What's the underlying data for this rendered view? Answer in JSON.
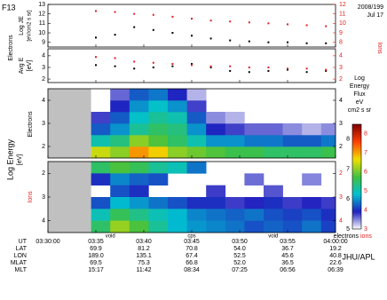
{
  "satellite": "F13",
  "date": "2008/199",
  "day": "Jul 17",
  "credit": "JHU/APL",
  "x_axis": {
    "xlim": [
      30,
      60
    ],
    "xticks": [
      {
        "value": 30,
        "label": "03:30:00"
      },
      {
        "value": 35,
        "label": "03:35"
      },
      {
        "value": 40,
        "label": "03:40"
      },
      {
        "value": 45,
        "label": "03:45"
      },
      {
        "value": 50,
        "label": "03:50"
      },
      {
        "value": 55,
        "label": "03:55"
      },
      {
        "value": 60,
        "label": "04:00:00"
      }
    ],
    "label": "UT"
  },
  "regions": [
    {
      "x": 36.5,
      "label": "void"
    },
    {
      "x": 45,
      "label": "cps"
    },
    {
      "x": 53.5,
      "label": "void"
    }
  ],
  "ephemeris": [
    {
      "label": "LAT",
      "values": [
        "69.9",
        "81.2",
        "70.8",
        "54.0",
        "36.7",
        "19.2"
      ]
    },
    {
      "label": "LON",
      "values": [
        "189.0",
        "135.1",
        "67.4",
        "52.5",
        "45.6",
        "40.8"
      ]
    },
    {
      "label": "MLAT",
      "values": [
        "69.5",
        "75.3",
        "66.8",
        "52.0",
        "36.5",
        "22.6"
      ]
    },
    {
      "label": "MLT",
      "values": [
        "15:17",
        "11:42",
        "08:34",
        "07:25",
        "06:56",
        "06:39"
      ]
    }
  ],
  "colorbar": {
    "title": [
      "Log",
      "Energy",
      "Flux",
      "eV",
      "cm2 s sr"
    ],
    "colormap": [
      "#ffffff",
      "#2020c0",
      "#00c0d0",
      "#40c040",
      "#f0e000",
      "#ff4000",
      "#800000"
    ],
    "electrons": {
      "name": "electrons",
      "color": "#000000",
      "zlim": [
        5,
        8.5
      ],
      "ticks": [
        5,
        6,
        7,
        8
      ]
    },
    "ions": {
      "name": "ions",
      "color": "#e02020",
      "zlim": [
        3,
        8.5
      ],
      "ticks": [
        3,
        4,
        5,
        6,
        7,
        8
      ]
    }
  },
  "chart_data": [
    {
      "type": "scatter",
      "ylabel": "Log JE",
      "yunits": "[eV/cm2 s sr]",
      "ylim": [
        8.5,
        13
      ],
      "yticks": [
        9,
        10,
        11,
        12,
        13
      ],
      "y2lim": [
        7.5,
        12
      ],
      "y2ticks": [
        8,
        9,
        10,
        11,
        12
      ],
      "x": [
        35,
        37,
        39,
        41,
        43,
        45,
        47,
        49,
        51,
        53,
        55,
        57,
        59
      ],
      "series": [
        {
          "name": "Electrons",
          "color": "#000000",
          "values": [
            9.5,
            9.8,
            10.6,
            10.3,
            10.0,
            9.7,
            9.4,
            9.2,
            9.1,
            9.0,
            9.0,
            8.9,
            8.9
          ]
        },
        {
          "name": "Ions",
          "color": "#e02020",
          "axis": "y2",
          "values": [
            11.3,
            11.2,
            11.0,
            10.9,
            10.7,
            10.5,
            10.3,
            10.2,
            10.1,
            10.0,
            9.9,
            9.8,
            9.7
          ]
        }
      ]
    },
    {
      "type": "scatter",
      "ylabel": "Avg E",
      "yunits": "[eV]",
      "ylim": [
        1.7,
        4.6
      ],
      "yticks": [
        2,
        3,
        4
      ],
      "y2lim": [
        1.7,
        4.6
      ],
      "y2ticks": [
        2,
        3,
        4
      ],
      "x": [
        35,
        37,
        39,
        41,
        43,
        45,
        47,
        49,
        51,
        53,
        55,
        57,
        59
      ],
      "series": [
        {
          "color": "#000000",
          "values": [
            3.2,
            3.1,
            2.9,
            3.0,
            3.1,
            3.3,
            3.0,
            2.7,
            2.6,
            2.7,
            2.8,
            2.6,
            2.7
          ]
        },
        {
          "color": "#e02020",
          "axis": "y2",
          "values": [
            3.9,
            3.8,
            3.5,
            3.4,
            3.3,
            3.2,
            3.1,
            3.1,
            3.0,
            3.0,
            2.9,
            2.9,
            2.8
          ]
        }
      ]
    },
    {
      "type": "heatmap",
      "label": "Electrons",
      "color": "#000000",
      "ylabel": "Log Energy",
      "yunits": "[eV]",
      "zscale": "electrons",
      "ylim": [
        1.5,
        4.5
      ],
      "yticks": [
        2,
        3,
        4
      ],
      "x_bins": [
        34.5,
        36.5,
        38.5,
        40.5,
        42.5,
        44.5,
        46.5,
        48.5,
        50.5,
        52.5,
        54.5,
        56.5,
        58.5,
        60
      ],
      "energy_bins": [
        1.5,
        2,
        2.5,
        3,
        3.5,
        4,
        4.5
      ],
      "z": [
        [
          7.2,
          6.3,
          5.8,
          5.5,
          null,
          null
        ],
        [
          7.0,
          6.5,
          6.0,
          5.8,
          5.6,
          5.4
        ],
        [
          7.6,
          7.0,
          6.4,
          6.2,
          6.0,
          5.8
        ],
        [
          7.4,
          6.8,
          6.6,
          6.4,
          6.2,
          5.9
        ],
        [
          7.0,
          6.6,
          6.5,
          6.3,
          6.0,
          5.6
        ],
        [
          6.9,
          6.3,
          6.0,
          5.8,
          5.5,
          5.2
        ],
        [
          6.8,
          6.0,
          5.6,
          5.3,
          null,
          null
        ],
        [
          6.7,
          6.0,
          5.5,
          5.2,
          null,
          null
        ],
        [
          6.7,
          5.9,
          5.4,
          null,
          null,
          null
        ],
        [
          6.6,
          5.9,
          5.4,
          null,
          null,
          null
        ],
        [
          6.6,
          5.8,
          5.3,
          null,
          null,
          null
        ],
        [
          6.6,
          5.8,
          5.2,
          null,
          null,
          null
        ],
        [
          6.7,
          5.9,
          5.3,
          null,
          null,
          null
        ]
      ]
    },
    {
      "type": "heatmap",
      "label": "Ions",
      "color": "#e02020",
      "zscale": "ions",
      "ylim": [
        4.5,
        1.5
      ],
      "yticks": [
        2,
        3,
        4
      ],
      "x_bins": [
        34.5,
        36.5,
        38.5,
        40.5,
        42.5,
        44.5,
        46.5,
        48.5,
        50.5,
        52.5,
        54.5,
        56.5,
        58.5,
        60
      ],
      "energy_bins": [
        1.5,
        2,
        2.5,
        3,
        3.5,
        4,
        4.5
      ],
      "z": [
        [
          5.5,
          4.0,
          null,
          4.2,
          5.0,
          5.5
        ],
        [
          5.8,
          4.5,
          4.2,
          4.8,
          5.6,
          6.2
        ],
        [
          5.6,
          4.3,
          4.0,
          4.6,
          5.3,
          5.8
        ],
        [
          5.2,
          4.2,
          null,
          4.4,
          5.0,
          5.2
        ],
        [
          5.0,
          null,
          null,
          4.2,
          4.8,
          4.8
        ],
        [
          4.4,
          null,
          null,
          4.0,
          4.5,
          4.6
        ],
        [
          null,
          null,
          3.8,
          4.0,
          4.4,
          4.5
        ],
        [
          null,
          null,
          null,
          3.8,
          4.3,
          4.4
        ],
        [
          null,
          3.6,
          null,
          3.9,
          4.4,
          4.2
        ],
        [
          null,
          null,
          3.7,
          4.0,
          4.2,
          4.3
        ],
        [
          null,
          null,
          null,
          3.8,
          4.1,
          4.2
        ],
        [
          null,
          3.5,
          null,
          3.9,
          4.2,
          4.4
        ],
        [
          null,
          null,
          null,
          3.8,
          4.0,
          4.1
        ]
      ]
    }
  ]
}
